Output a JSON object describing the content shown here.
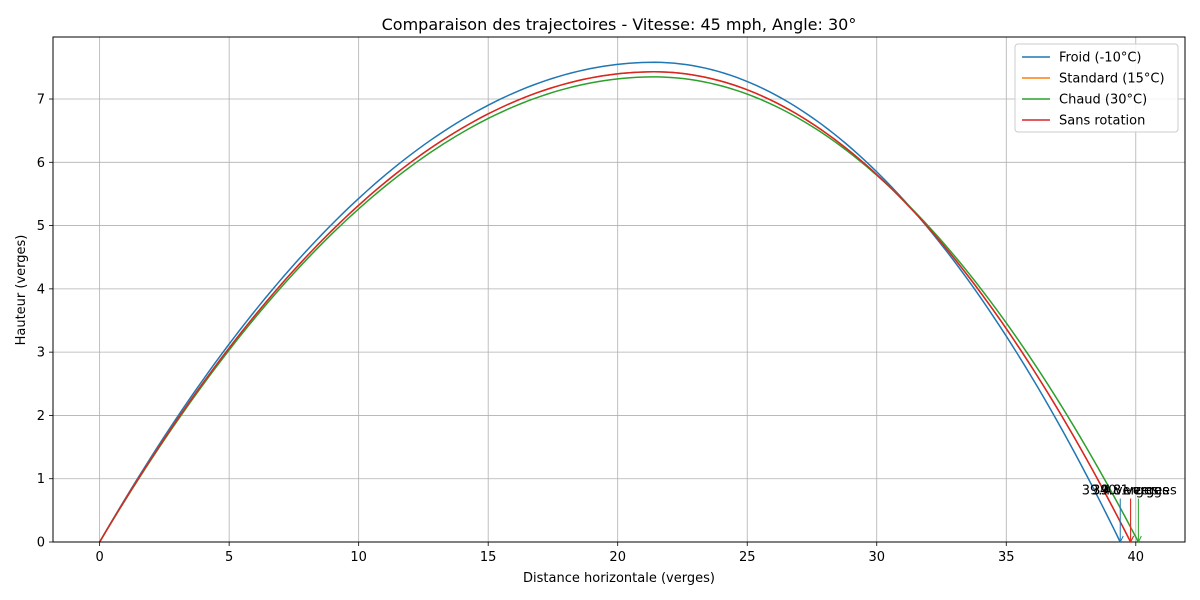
{
  "chart_data": {
    "type": "line",
    "title": "Comparaison des trajectoires - Vitesse: 45 mph, Angle: 30°",
    "xlabel": "Distance horizontale (verges)",
    "ylabel": "Hauteur (verges)",
    "xlim": [
      -1.8,
      41.9
    ],
    "ylim": [
      0,
      7.98
    ],
    "xticks": [
      0,
      5,
      10,
      15,
      20,
      25,
      30,
      35,
      40
    ],
    "yticks": [
      0,
      1,
      2,
      3,
      4,
      5,
      6,
      7
    ],
    "grid": true,
    "legend_position": "top-right",
    "series": [
      {
        "name": "Froid (-10°C)",
        "color": "#1f77b4",
        "range": 39.4,
        "apex_x": 21.4,
        "apex_y": 7.58
      },
      {
        "name": "Standard (15°C)",
        "color": "#ff7f0e",
        "range": 39.8,
        "apex_x": 21.4,
        "apex_y": 7.43
      },
      {
        "name": "Chaud (30°C)",
        "color": "#2ca02c",
        "range": 40.1,
        "apex_x": 21.4,
        "apex_y": 7.35
      },
      {
        "name": "Sans rotation",
        "color": "#d62728",
        "range": 39.8,
        "apex_x": 21.4,
        "apex_y": 7.43
      }
    ],
    "annotations": [
      {
        "text": "39.4 verges",
        "x": 39.4,
        "y": 0.75,
        "color": "#1f77b4"
      },
      {
        "text": "39.8 verges",
        "x": 39.8,
        "y": 0.75,
        "color": "#ff7f0e"
      },
      {
        "text": "40.1 verges",
        "x": 40.1,
        "y": 0.75,
        "color": "#2ca02c"
      },
      {
        "text": "39.8 verges",
        "x": 39.8,
        "y": 0.75,
        "color": "#d62728"
      }
    ]
  }
}
